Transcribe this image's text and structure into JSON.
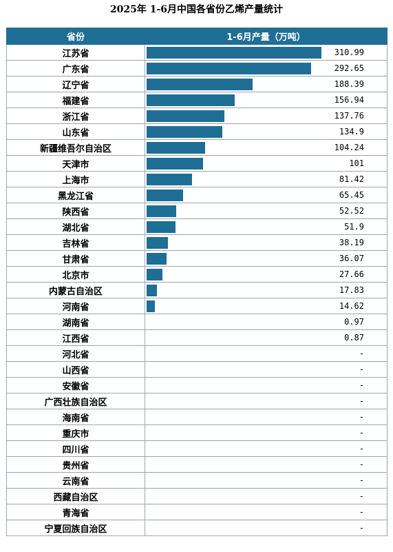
{
  "title": "2025年 1-6月中国各省份乙烯产量统计",
  "chart_data": {
    "type": "bar",
    "orientation": "horizontal",
    "title": "2025年 1-6月中国各省份乙烯产量统计",
    "headers": [
      "省份",
      "1-6月产量（万吨）"
    ],
    "xlim": [
      0,
      310.99
    ],
    "colors": {
      "bar": "#1f6e95",
      "header": "#1f6e95"
    },
    "rows": [
      {
        "category": "江苏省",
        "value": 310.99,
        "label": "310.99"
      },
      {
        "category": "广东省",
        "value": 292.65,
        "label": "292.65"
      },
      {
        "category": "辽宁省",
        "value": 188.39,
        "label": "188.39"
      },
      {
        "category": "福建省",
        "value": 156.94,
        "label": "156.94"
      },
      {
        "category": "浙江省",
        "value": 137.76,
        "label": "137.76"
      },
      {
        "category": "山东省",
        "value": 134.9,
        "label": "134.9"
      },
      {
        "category": "新疆维吾尔自治区",
        "value": 104.24,
        "label": "104.24"
      },
      {
        "category": "天津市",
        "value": 101,
        "label": "101"
      },
      {
        "category": "上海市",
        "value": 81.42,
        "label": "81.42"
      },
      {
        "category": "黑龙江省",
        "value": 65.45,
        "label": "65.45"
      },
      {
        "category": "陕西省",
        "value": 52.52,
        "label": "52.52"
      },
      {
        "category": "湖北省",
        "value": 51.9,
        "label": "51.9"
      },
      {
        "category": "吉林省",
        "value": 38.19,
        "label": "38.19"
      },
      {
        "category": "甘肃省",
        "value": 36.07,
        "label": "36.07"
      },
      {
        "category": "北京市",
        "value": 27.66,
        "label": "27.66"
      },
      {
        "category": "内蒙古自治区",
        "value": 17.83,
        "label": "17.83"
      },
      {
        "category": "河南省",
        "value": 14.62,
        "label": "14.62"
      },
      {
        "category": "湖南省",
        "value": 0.97,
        "label": "0.97"
      },
      {
        "category": "江西省",
        "value": 0.87,
        "label": "0.87"
      },
      {
        "category": "河北省",
        "value": null,
        "label": "-"
      },
      {
        "category": "山西省",
        "value": null,
        "label": "-"
      },
      {
        "category": "安徽省",
        "value": null,
        "label": "-"
      },
      {
        "category": "广西壮族自治区",
        "value": null,
        "label": "-"
      },
      {
        "category": "海南省",
        "value": null,
        "label": "-"
      },
      {
        "category": "重庆市",
        "value": null,
        "label": "-"
      },
      {
        "category": "四川省",
        "value": null,
        "label": "-"
      },
      {
        "category": "贵州省",
        "value": null,
        "label": "-"
      },
      {
        "category": "云南省",
        "value": null,
        "label": "-"
      },
      {
        "category": "西藏自治区",
        "value": null,
        "label": "-"
      },
      {
        "category": "青海省",
        "value": null,
        "label": "-"
      },
      {
        "category": "宁夏回族自治区",
        "value": null,
        "label": "-"
      }
    ]
  }
}
